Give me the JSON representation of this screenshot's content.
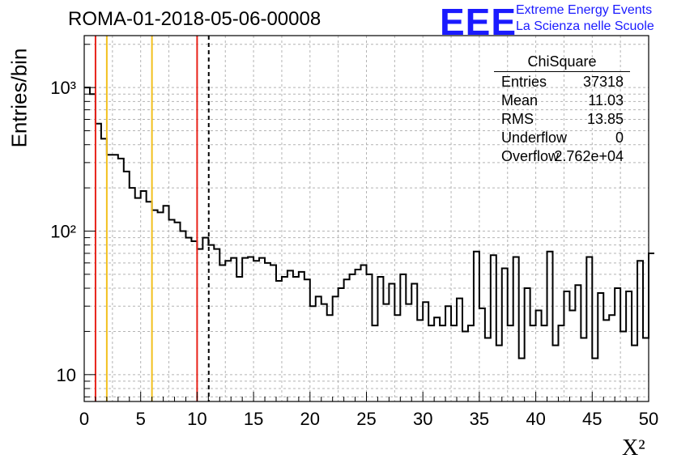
{
  "title": "ROMA-01-2018-05-06-00008",
  "logo": {
    "text": "EEE",
    "line1": "Extreme Energy Events",
    "line2": "La Scienza nelle Scuole",
    "color": "#1a1aff"
  },
  "stats": {
    "title": "ChiSquare",
    "rows": [
      {
        "key": "Entries",
        "value": "37318"
      },
      {
        "key": "Mean",
        "value": "11.03"
      },
      {
        "key": "RMS",
        "value": "13.85"
      },
      {
        "key": "Underflow",
        "value": "0"
      },
      {
        "key": "Overflow",
        "value": "2.762e+04"
      }
    ]
  },
  "chart_data": {
    "type": "histogram",
    "xlabel": "X²",
    "ylabel": "Entries/bin",
    "xlim": [
      0,
      50
    ],
    "ylim": [
      6.5,
      2300
    ],
    "yscale": "log",
    "grid": true,
    "bin_width": 0.5,
    "x_ticks": [
      0,
      5,
      10,
      15,
      20,
      25,
      30,
      35,
      40,
      45,
      50
    ],
    "y_tick_labels": [
      "10",
      "10²",
      "10³"
    ],
    "counts": [
      1000,
      900,
      560,
      440,
      340,
      340,
      320,
      260,
      200,
      170,
      190,
      160,
      140,
      135,
      150,
      120,
      115,
      100,
      90,
      85,
      75,
      90,
      80,
      75,
      58,
      62,
      65,
      48,
      65,
      66,
      62,
      65,
      60,
      58,
      45,
      48,
      53,
      48,
      52,
      46,
      30,
      35,
      31,
      26,
      35,
      40,
      46,
      50,
      54,
      58,
      50,
      22,
      48,
      31,
      43,
      26,
      50,
      31,
      43,
      24,
      32,
      22,
      25,
      22,
      30,
      22,
      34,
      20,
      22,
      72,
      29,
      18,
      68,
      16,
      55,
      22,
      66,
      13,
      40,
      22,
      28,
      22,
      72,
      16,
      22,
      38,
      28,
      42,
      18,
      66,
      13,
      37,
      24,
      26,
      40,
      20,
      38,
      16,
      62,
      18,
      70
    ],
    "markers": [
      {
        "x": 1,
        "color": "#e8231a",
        "style": "solid"
      },
      {
        "x": 2,
        "color": "#f2c01e",
        "style": "solid"
      },
      {
        "x": 6,
        "color": "#f2c01e",
        "style": "solid"
      },
      {
        "x": 10,
        "color": "#e8231a",
        "style": "solid"
      },
      {
        "x": 11.03,
        "color": "#000000",
        "style": "dashed"
      }
    ]
  }
}
